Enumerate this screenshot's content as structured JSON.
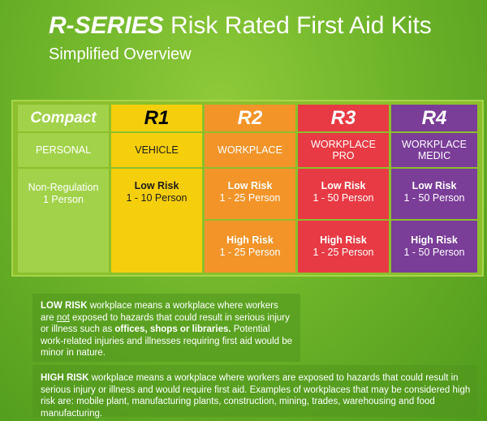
{
  "header": {
    "brand": "R-SERIES",
    "title_rest": "Risk Rated First Aid Kits",
    "subtitle": "Simplified Overview"
  },
  "columns": [
    {
      "name": "Compact",
      "category": "PERSONAL",
      "cells": [
        {
          "risk": "",
          "text": "Non-Regulation\n1 Person"
        }
      ]
    },
    {
      "name": "R1",
      "category": "VEHICLE",
      "cells": [
        {
          "risk": "Low Risk",
          "text": "1 - 10 Person"
        }
      ]
    },
    {
      "name": "R2",
      "category": "WORKPLACE",
      "cells": [
        {
          "risk": "Low Risk",
          "text": "1 - 25 Person"
        },
        {
          "risk": "High Risk",
          "text": "1 - 25 Person"
        }
      ]
    },
    {
      "name": "R3",
      "category": "WORKPLACE\nPRO",
      "cells": [
        {
          "risk": "Low Risk",
          "text": "1 - 50 Person"
        },
        {
          "risk": "High Risk",
          "text": "1 - 25 Person"
        }
      ]
    },
    {
      "name": "R4",
      "category": "WORKPLACE\nMEDIC",
      "cells": [
        {
          "risk": "Low Risk",
          "text": "1 - 50 Person"
        },
        {
          "risk": "High Risk",
          "text": "1 - 50 Person"
        }
      ]
    }
  ],
  "notes": {
    "low": {
      "term": "LOW RISK",
      "p1": " workplace means a workplace where workers are ",
      "not": "not",
      "p2": " exposed to hazards that could result in serious injury or illness such as ",
      "examples": "offices, shops or libraries.",
      "p3": " Potential work-related injuries and illnesses requiring first aid would be minor in nature."
    },
    "high": {
      "term": "HIGH RISK",
      "p1": " workplace means a workplace where workers are exposed to hazards that could result in serious injury or illness and would require first aid. Examples of workplaces that may be considered high risk are: mobile plant, manufacturing plants, construction, mining, trades, warehousing and food manufacturing."
    }
  }
}
